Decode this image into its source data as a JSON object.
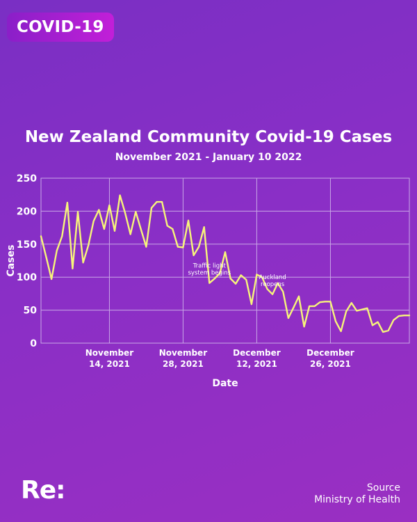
{
  "badge": {
    "label": "COVID-19"
  },
  "branding": {
    "logo_text": "Re:"
  },
  "source": {
    "label": "Source",
    "name": "Ministry of Health"
  },
  "colors": {
    "line": "#f7f57a",
    "grid": "#c9a8e6",
    "text": "#ffffff"
  },
  "chart_data": {
    "type": "line",
    "title": "New Zealand Community Covid-19 Cases",
    "subtitle": "November 2021 - January 10 2022",
    "xlabel": "Date",
    "ylabel": "Cases",
    "ylim": [
      0,
      250
    ],
    "yticks": [
      0,
      50,
      100,
      150,
      200,
      250
    ],
    "xlim": [
      "2021-11-01",
      "2022-01-10"
    ],
    "xticks": [
      {
        "date": "2021-11-14",
        "label": [
          "November",
          "14, 2021"
        ]
      },
      {
        "date": "2021-11-28",
        "label": [
          "November",
          "28, 2021"
        ]
      },
      {
        "date": "2021-12-12",
        "label": [
          "December",
          "12, 2021"
        ]
      },
      {
        "date": "2021-12-26",
        "label": [
          "December",
          "26, 2021"
        ]
      }
    ],
    "grid": true,
    "x": [
      "2021-11-01",
      "2021-11-02",
      "2021-11-03",
      "2021-11-04",
      "2021-11-05",
      "2021-11-06",
      "2021-11-07",
      "2021-11-08",
      "2021-11-09",
      "2021-11-10",
      "2021-11-11",
      "2021-11-12",
      "2021-11-13",
      "2021-11-14",
      "2021-11-15",
      "2021-11-16",
      "2021-11-17",
      "2021-11-18",
      "2021-11-19",
      "2021-11-20",
      "2021-11-21",
      "2021-11-22",
      "2021-11-23",
      "2021-11-24",
      "2021-11-25",
      "2021-11-26",
      "2021-11-27",
      "2021-11-28",
      "2021-11-29",
      "2021-11-30",
      "2021-12-01",
      "2021-12-02",
      "2021-12-03",
      "2021-12-04",
      "2021-12-05",
      "2021-12-06",
      "2021-12-07",
      "2021-12-08",
      "2021-12-09",
      "2021-12-10",
      "2021-12-11",
      "2021-12-12",
      "2021-12-13",
      "2021-12-14",
      "2021-12-15",
      "2021-12-16",
      "2021-12-17",
      "2021-12-18",
      "2021-12-19",
      "2021-12-20",
      "2021-12-21",
      "2021-12-22",
      "2021-12-23",
      "2021-12-24",
      "2021-12-25",
      "2021-12-26",
      "2021-12-27",
      "2021-12-28",
      "2021-12-29",
      "2021-12-30",
      "2021-12-31",
      "2022-01-01",
      "2022-01-02",
      "2022-01-03",
      "2022-01-04",
      "2022-01-05",
      "2022-01-06",
      "2022-01-07",
      "2022-01-08",
      "2022-01-09",
      "2022-01-10"
    ],
    "series": [
      {
        "values": [
          162,
          130,
          97,
          140,
          162,
          213,
          113,
          199,
          122,
          148,
          185,
          202,
          173,
          209,
          170,
          224,
          197,
          165,
          199,
          172,
          146,
          205,
          214,
          214,
          178,
          173,
          146,
          145,
          186,
          133,
          146,
          176,
          91,
          98,
          106,
          138,
          98,
          90,
          103,
          96,
          59,
          104,
          100,
          82,
          74,
          91,
          78,
          38,
          54,
          71,
          25,
          56,
          56,
          62,
          63,
          63,
          33,
          18,
          48,
          61,
          49,
          51,
          53,
          27,
          32,
          17,
          19,
          35,
          41,
          42,
          42
        ]
      }
    ],
    "annotations": [
      {
        "text": [
          "Traffic light",
          "system begins"
        ],
        "date": "2021-12-03"
      },
      {
        "text": [
          "Auckland",
          "reopens"
        ],
        "date": "2021-12-15"
      }
    ]
  }
}
